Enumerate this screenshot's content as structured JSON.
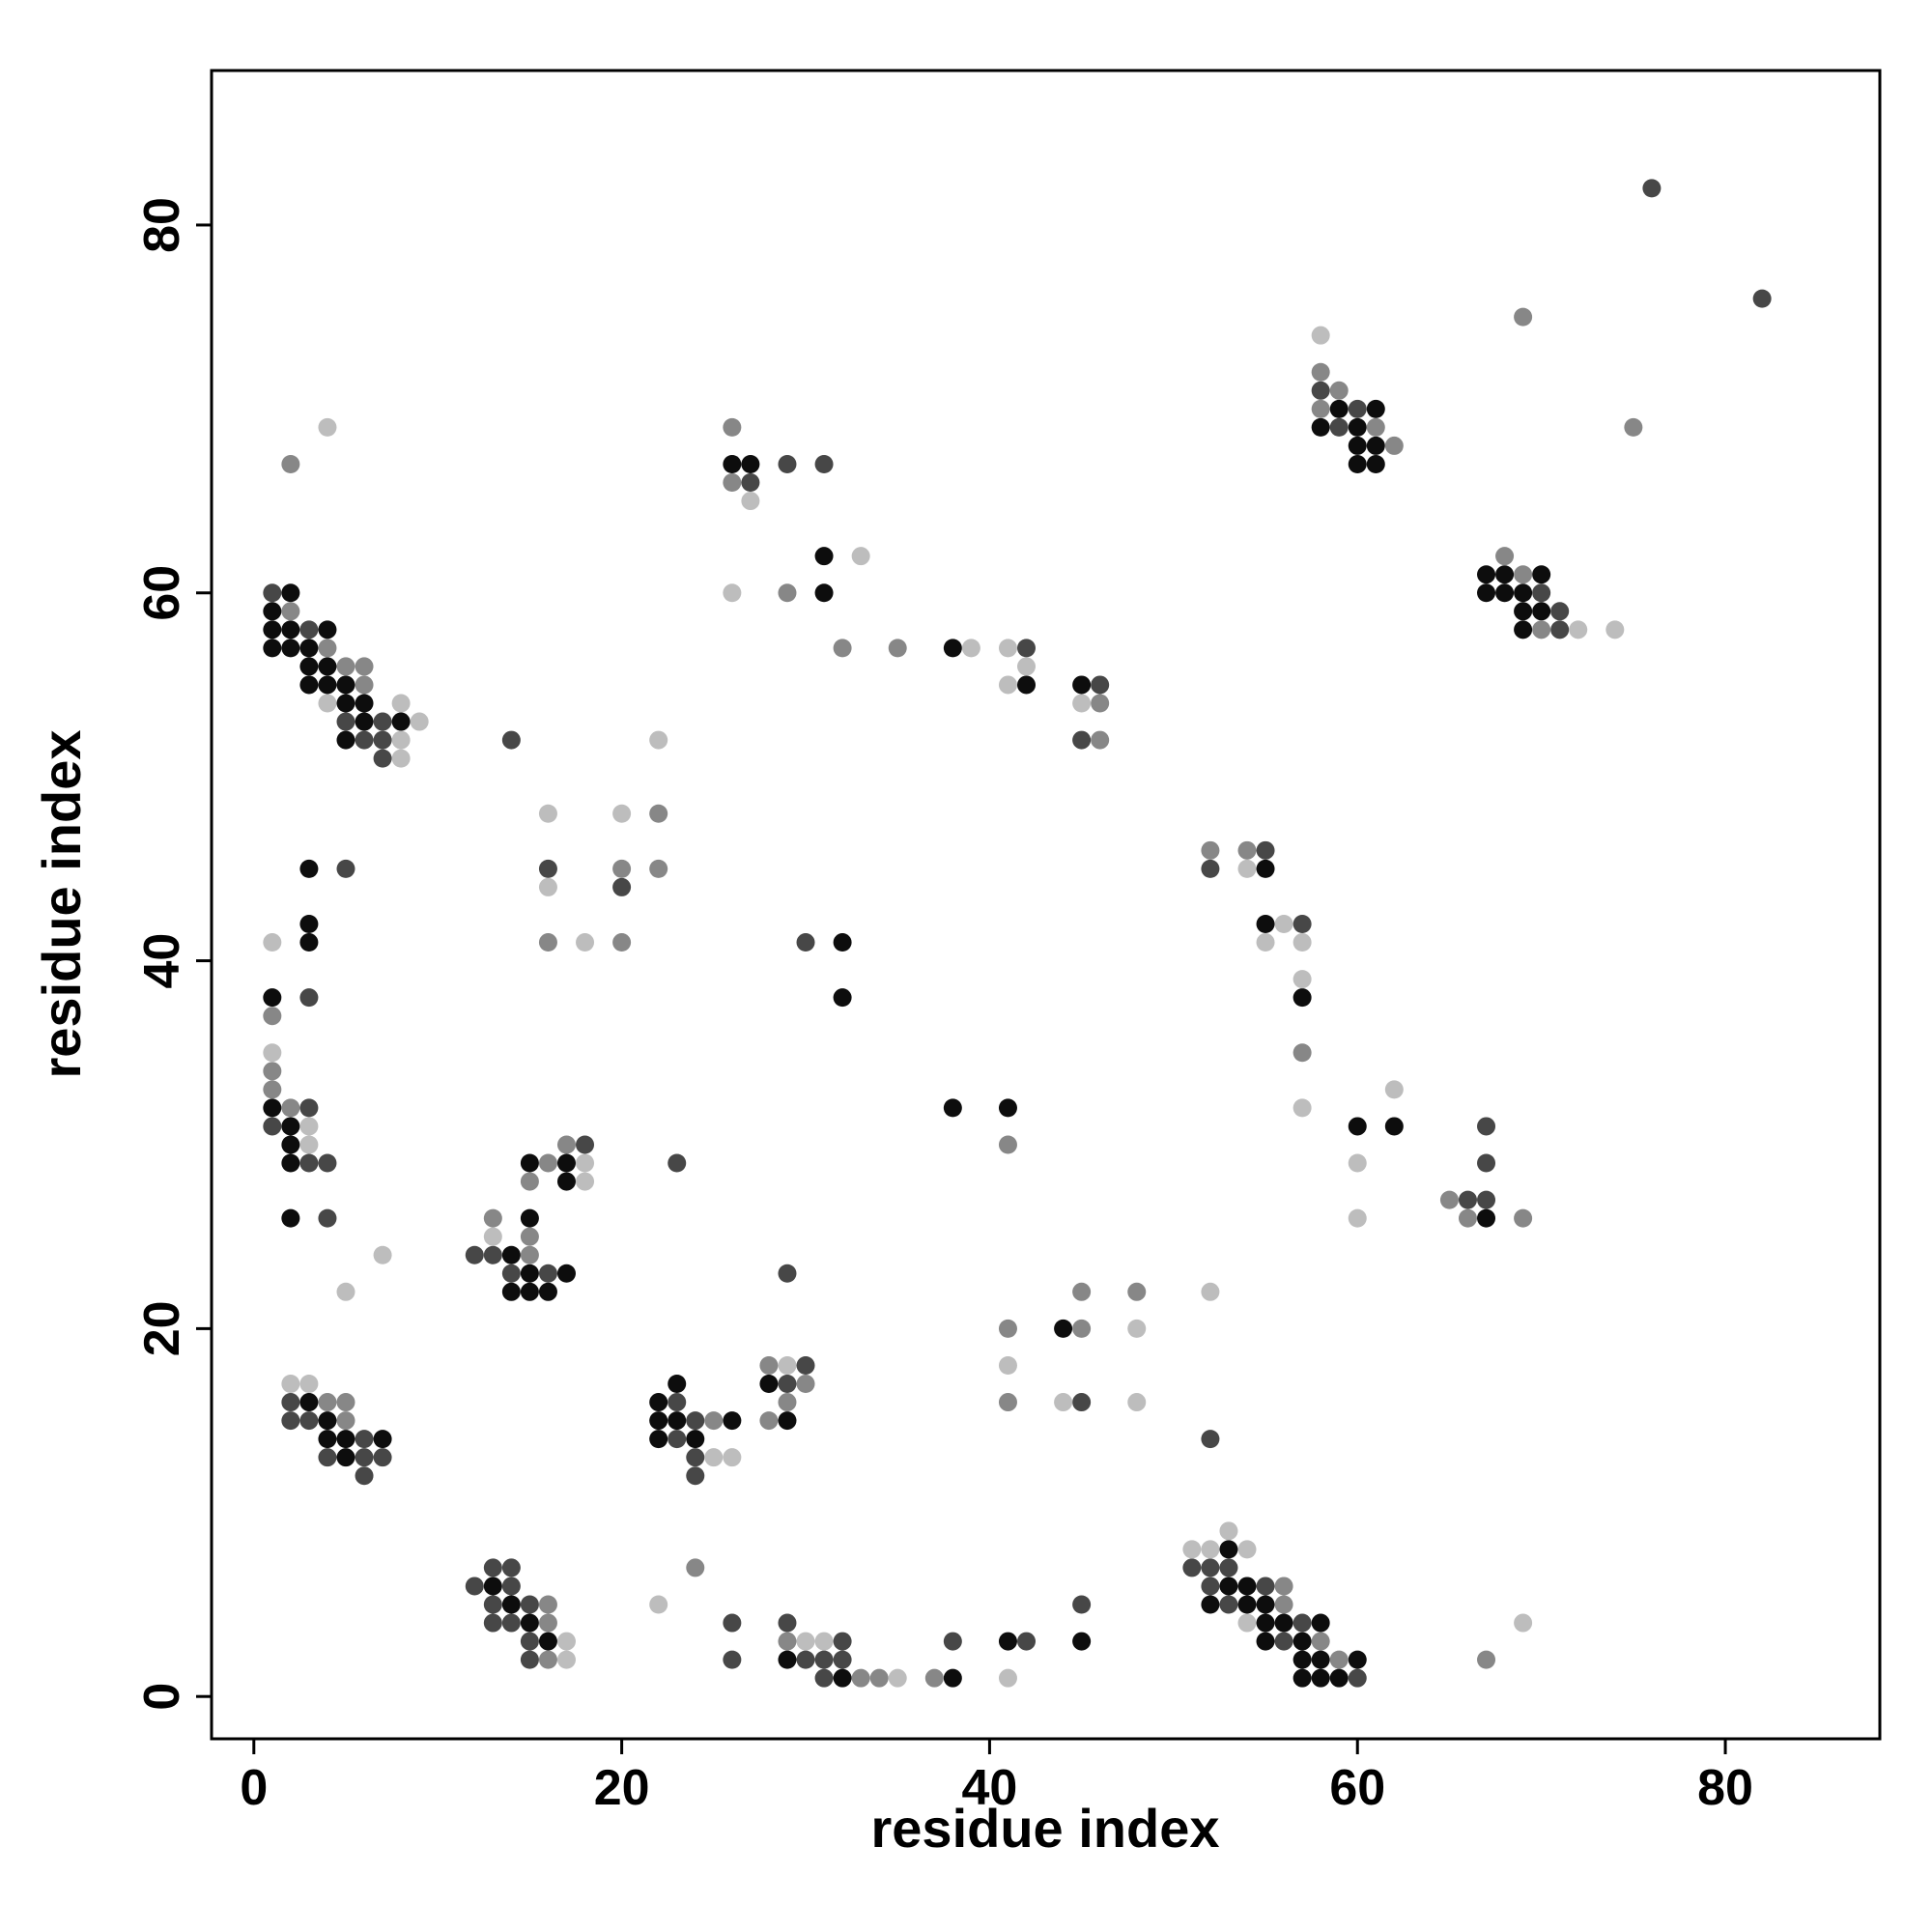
{
  "chart_data": {
    "type": "scatter",
    "xlabel": "residue index",
    "ylabel": "residue index",
    "xlim": [
      -2.3,
      88.4
    ],
    "ylim": [
      -2.3,
      88.4
    ],
    "xticks": [
      0,
      20,
      40,
      60,
      80
    ],
    "yticks": [
      0,
      20,
      40,
      60,
      80
    ],
    "series": [
      {
        "color": "#0d0d0d",
        "x": [
          59,
          61,
          58,
          60,
          60,
          61,
          26,
          27,
          60,
          61,
          31,
          67,
          68,
          70,
          2,
          31,
          67,
          68,
          69,
          1,
          69,
          70,
          1,
          2,
          4,
          69,
          1,
          2,
          3,
          38,
          3,
          4,
          3,
          4,
          5,
          42,
          45,
          5,
          6,
          6,
          8,
          5,
          3,
          55,
          3,
          55,
          3,
          32,
          1,
          32,
          57,
          1,
          38,
          41,
          2,
          60,
          62,
          2,
          2,
          15,
          17,
          17,
          2,
          15,
          67,
          14,
          15,
          17,
          14,
          15,
          16,
          44,
          23,
          28,
          3,
          22,
          4,
          22,
          23,
          26,
          29,
          4,
          5,
          7,
          22,
          24,
          5,
          53,
          13,
          53,
          54,
          14,
          52,
          54,
          55,
          15,
          55,
          56,
          58,
          16,
          41,
          45,
          55,
          57,
          29,
          57,
          58,
          60,
          32,
          38,
          57,
          58,
          59
        ],
        "values": [
          70,
          70,
          69,
          69,
          68,
          68,
          67,
          67,
          67,
          67,
          62,
          61,
          61,
          61,
          60,
          60,
          60,
          60,
          60,
          59,
          59,
          59,
          58,
          58,
          58,
          58,
          57,
          57,
          57,
          57,
          56,
          56,
          55,
          55,
          55,
          55,
          55,
          54,
          54,
          53,
          53,
          52,
          45,
          45,
          42,
          42,
          41,
          41,
          38,
          38,
          38,
          32,
          32,
          32,
          31,
          31,
          31,
          30,
          29,
          29,
          29,
          28,
          26,
          26,
          26,
          24,
          23,
          23,
          22,
          22,
          22,
          20,
          17,
          17,
          16,
          16,
          15,
          15,
          15,
          15,
          15,
          14,
          14,
          14,
          14,
          14,
          13,
          8,
          6,
          6,
          6,
          5,
          5,
          5,
          5,
          4,
          4,
          4,
          4,
          3,
          3,
          3,
          3,
          3,
          2,
          2,
          2,
          2,
          1,
          1,
          1,
          1,
          1
        ]
      },
      {
        "color": "#474747",
        "x": [
          76,
          82,
          58,
          60,
          59,
          29,
          31,
          27,
          1,
          70,
          71,
          3,
          71,
          42,
          46,
          5,
          7,
          6,
          7,
          14,
          45,
          7,
          55,
          5,
          16,
          52,
          20,
          57,
          30,
          3,
          3,
          1,
          67,
          18,
          3,
          4,
          23,
          67,
          66,
          67,
          4,
          12,
          13,
          14,
          16,
          29,
          30,
          29,
          2,
          23,
          45,
          2,
          3,
          24,
          6,
          23,
          52,
          4,
          6,
          7,
          24,
          6,
          24,
          13,
          14,
          51,
          52,
          53,
          12,
          14,
          52,
          55,
          13,
          15,
          45,
          53,
          13,
          14,
          26,
          29,
          57,
          15,
          32,
          38,
          42,
          56,
          15,
          26,
          30,
          31,
          32,
          31,
          60
        ],
        "values": [
          82,
          76,
          71,
          70,
          69,
          67,
          67,
          66,
          60,
          60,
          59,
          58,
          58,
          57,
          55,
          53,
          53,
          52,
          52,
          52,
          52,
          51,
          46,
          45,
          45,
          45,
          44,
          42,
          41,
          38,
          32,
          31,
          31,
          30,
          29,
          29,
          29,
          29,
          27,
          27,
          26,
          24,
          24,
          23,
          23,
          23,
          18,
          17,
          16,
          16,
          16,
          15,
          15,
          15,
          14,
          14,
          14,
          13,
          13,
          13,
          13,
          12,
          12,
          7,
          7,
          7,
          7,
          7,
          6,
          6,
          6,
          6,
          5,
          5,
          5,
          5,
          4,
          4,
          4,
          4,
          4,
          3,
          3,
          3,
          3,
          3,
          2,
          2,
          2,
          2,
          2,
          1,
          1
        ]
      },
      {
        "color": "#878787",
        "x": [
          69,
          58,
          59,
          58,
          26,
          61,
          75,
          62,
          2,
          26,
          68,
          69,
          29,
          2,
          70,
          4,
          32,
          35,
          5,
          6,
          6,
          46,
          46,
          22,
          52,
          54,
          20,
          22,
          16,
          20,
          1,
          57,
          1,
          1,
          2,
          17,
          41,
          16,
          15,
          65,
          13,
          66,
          69,
          15,
          15,
          45,
          48,
          41,
          45,
          28,
          30,
          4,
          5,
          29,
          41,
          5,
          25,
          28,
          24,
          56,
          16,
          56,
          16,
          29,
          58,
          16,
          59,
          67,
          33,
          34,
          37
        ],
        "values": [
          75,
          72,
          71,
          70,
          69,
          69,
          69,
          68,
          67,
          66,
          62,
          61,
          60,
          59,
          58,
          57,
          57,
          57,
          56,
          56,
          55,
          54,
          52,
          48,
          46,
          46,
          45,
          45,
          41,
          41,
          37,
          35,
          34,
          33,
          32,
          30,
          30,
          29,
          28,
          27,
          26,
          26,
          26,
          25,
          24,
          22,
          22,
          20,
          20,
          18,
          17,
          16,
          16,
          16,
          16,
          15,
          15,
          15,
          7,
          6,
          5,
          5,
          4,
          3,
          3,
          2,
          2,
          2,
          1,
          1,
          1
        ]
      },
      {
        "color": "#bdbdbd",
        "x": [
          58,
          4,
          27,
          33,
          26,
          72,
          74,
          39,
          41,
          42,
          41,
          4,
          8,
          45,
          9,
          8,
          22,
          8,
          16,
          20,
          54,
          16,
          56,
          1,
          18,
          55,
          57,
          57,
          1,
          62,
          57,
          3,
          3,
          18,
          60,
          18,
          60,
          13,
          7,
          5,
          52,
          48,
          29,
          41,
          2,
          3,
          44,
          48,
          25,
          26,
          53,
          51,
          52,
          54,
          22,
          54,
          69,
          17,
          30,
          31,
          17,
          35,
          41
        ],
        "values": [
          74,
          69,
          65,
          62,
          60,
          58,
          58,
          57,
          57,
          56,
          55,
          54,
          54,
          54,
          53,
          52,
          52,
          51,
          48,
          48,
          45,
          44,
          42,
          41,
          41,
          41,
          41,
          39,
          35,
          33,
          32,
          31,
          30,
          29,
          29,
          28,
          26,
          25,
          24,
          22,
          22,
          20,
          18,
          18,
          17,
          17,
          16,
          16,
          13,
          13,
          9,
          8,
          8,
          8,
          5,
          4,
          4,
          3,
          3,
          3,
          2,
          1,
          1
        ]
      }
    ]
  }
}
